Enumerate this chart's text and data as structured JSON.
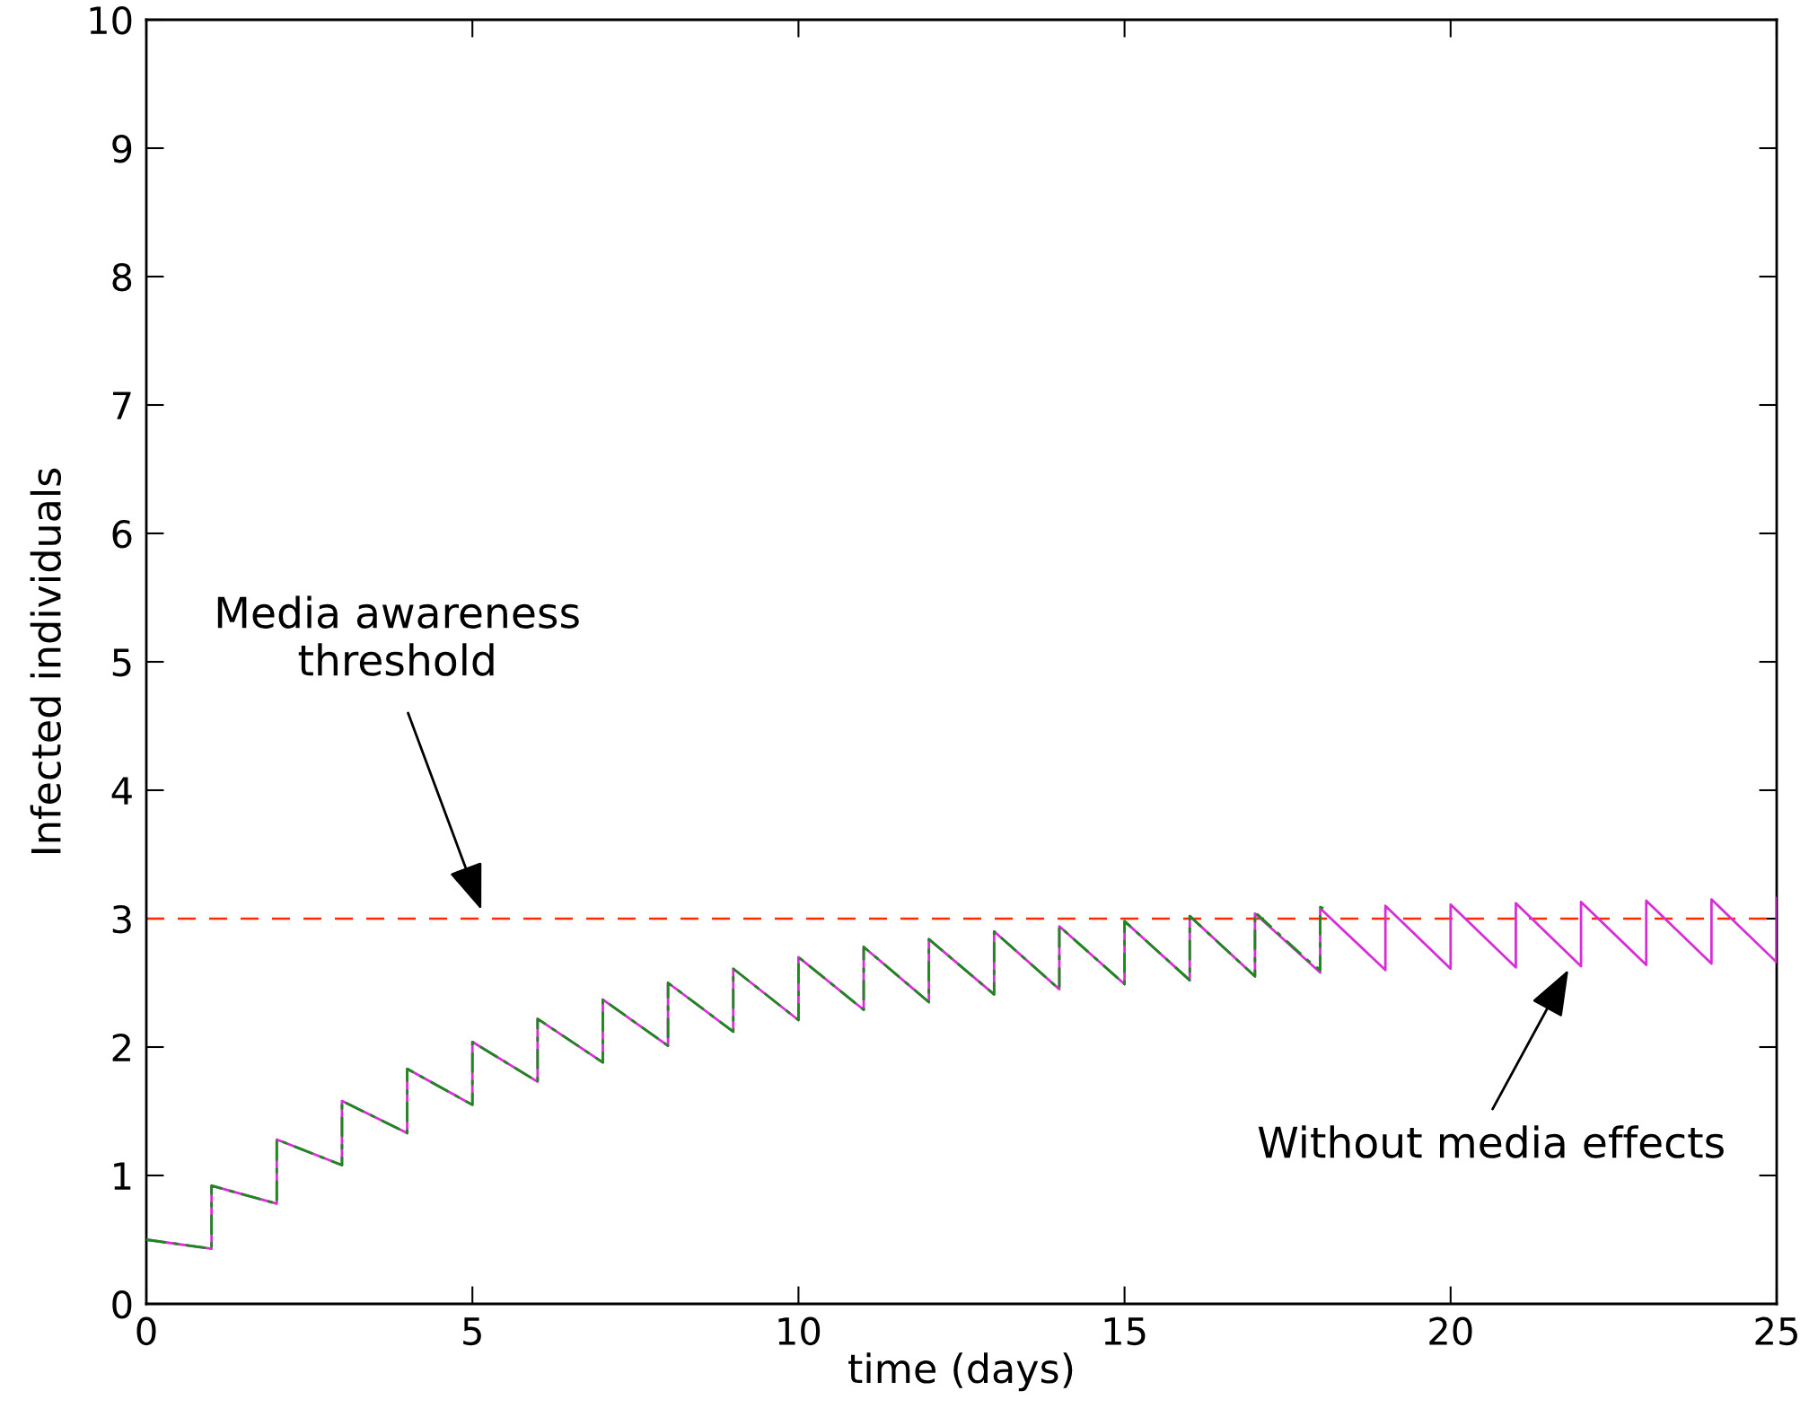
{
  "chart_data": {
    "type": "line",
    "xlabel": "time (days)",
    "ylabel": "Infected individuals",
    "xlim": [
      0,
      25
    ],
    "ylim": [
      0,
      10
    ],
    "xticks": [
      0,
      5,
      10,
      15,
      20,
      25
    ],
    "yticks": [
      0,
      1,
      2,
      3,
      4,
      5,
      6,
      7,
      8,
      9,
      10
    ],
    "grid": false,
    "legend": false,
    "series": [
      {
        "color": "#d62fd6",
        "line_style": "solid",
        "x": [
          0,
          1,
          1,
          2,
          2,
          3,
          3,
          4,
          4,
          5,
          5,
          6,
          6,
          7,
          7,
          8,
          8,
          9,
          9,
          10,
          10,
          11,
          11,
          12,
          12,
          13,
          13,
          14,
          14,
          15,
          15,
          16,
          16,
          17,
          17,
          18,
          18,
          19,
          19,
          20,
          20,
          21,
          21,
          22,
          22,
          23,
          23,
          24,
          24,
          25,
          25
        ],
        "values": [
          0.5,
          0.43,
          0.92,
          0.78,
          1.28,
          1.08,
          1.58,
          1.33,
          1.83,
          1.55,
          2.04,
          1.73,
          2.22,
          1.88,
          2.37,
          2.01,
          2.5,
          2.12,
          2.61,
          2.21,
          2.7,
          2.29,
          2.78,
          2.35,
          2.84,
          2.41,
          2.9,
          2.45,
          2.94,
          2.49,
          2.98,
          2.52,
          3.02,
          2.55,
          3.04,
          2.58,
          3.08,
          2.6,
          3.1,
          2.61,
          3.11,
          2.62,
          3.12,
          2.63,
          3.13,
          2.64,
          3.14,
          2.65,
          3.15,
          2.66,
          3.16
        ]
      },
      {
        "color": "#1a8a1a",
        "line_style": "dashed",
        "x": [
          0,
          1,
          1,
          2,
          2,
          3,
          3,
          4,
          4,
          5,
          5,
          6,
          6,
          7,
          7,
          8,
          8,
          9,
          9,
          10,
          10,
          11,
          11,
          12,
          12,
          13,
          13,
          14,
          14,
          15,
          15,
          16,
          16,
          17,
          17,
          17.8,
          18,
          18,
          18.05
        ],
        "values": [
          0.5,
          0.43,
          0.92,
          0.78,
          1.28,
          1.08,
          1.58,
          1.33,
          1.83,
          1.55,
          2.04,
          1.73,
          2.22,
          1.88,
          2.37,
          2.01,
          2.5,
          2.12,
          2.61,
          2.21,
          2.7,
          2.29,
          2.78,
          2.35,
          2.84,
          2.41,
          2.9,
          2.45,
          2.94,
          2.49,
          2.98,
          2.52,
          3.02,
          2.55,
          3.05,
          2.68,
          2.6,
          3.09,
          3.08
        ]
      }
    ],
    "ref_lines": [
      {
        "axis": "y",
        "value": 3,
        "color": "#ff2a00",
        "line_style": "dashed"
      }
    ],
    "annotations": [
      "Media awareness\nthreshold",
      "Without media effects"
    ]
  }
}
